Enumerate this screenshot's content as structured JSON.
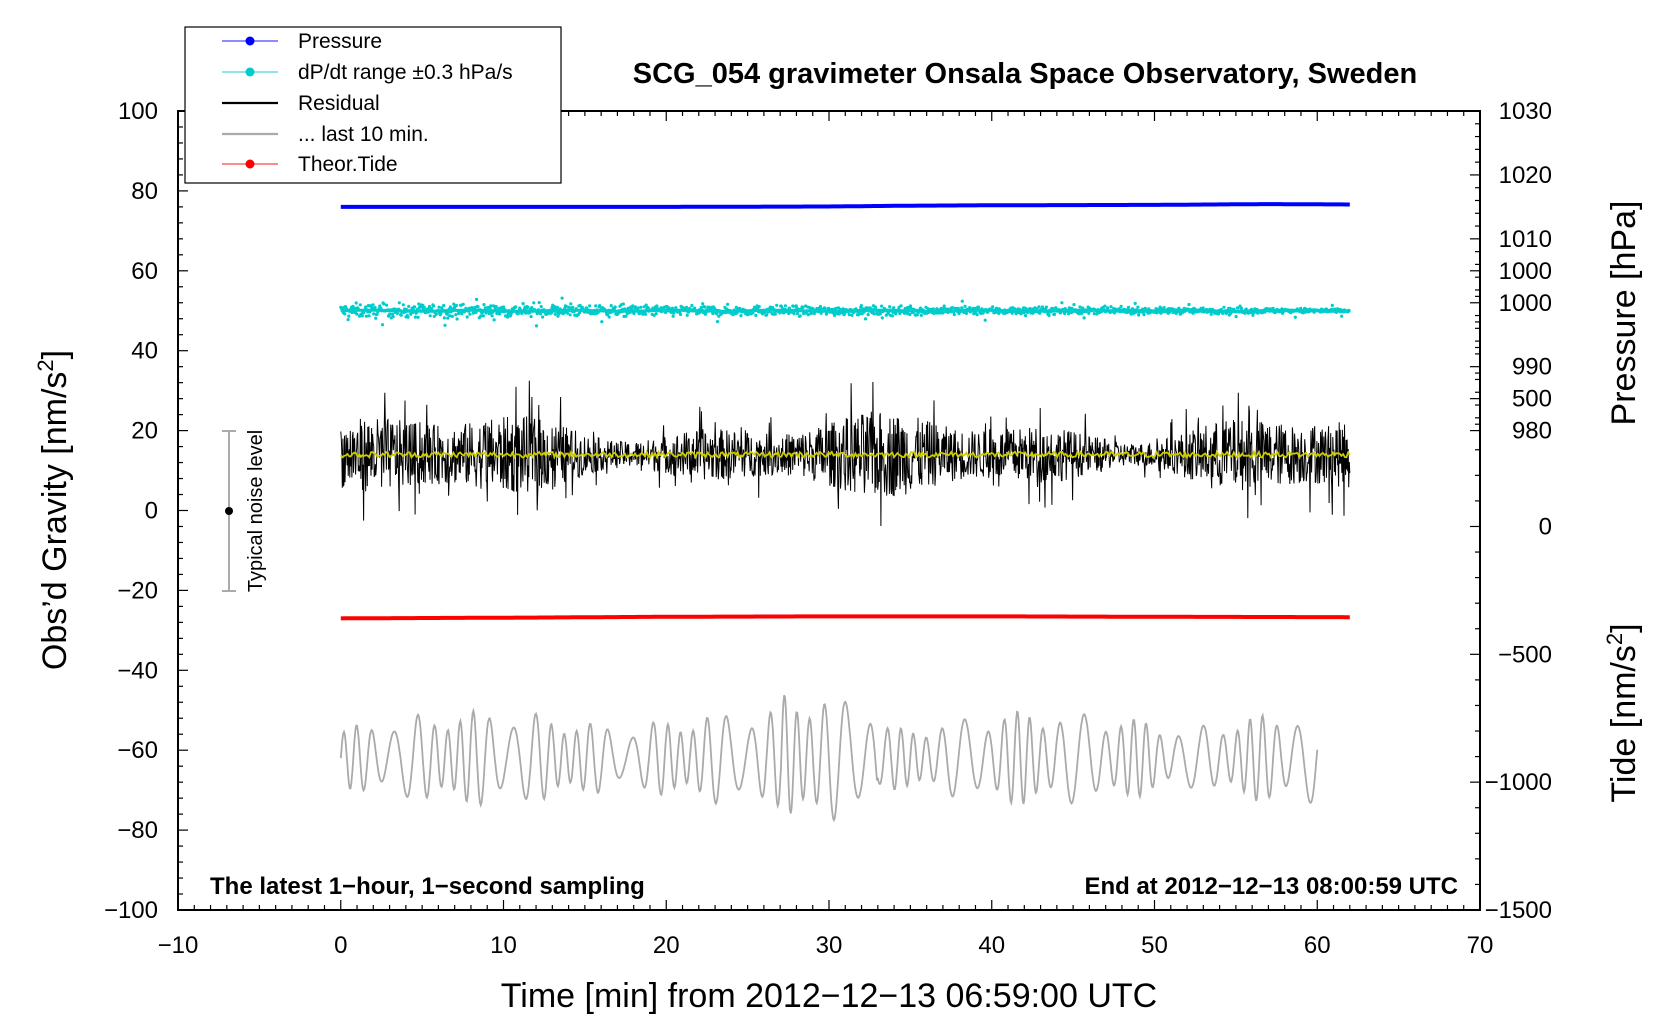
{
  "chart_data": {
    "type": "line",
    "title": "SCG_054 gravimeter Onsala Space Observatory, Sweden",
    "xlabel": "Time [min] from 2012−12−13 06:59:00 UTC",
    "ylabel_left_main": "Obs’d Gravity [nm/s",
    "ylabel_left_sup": "2",
    "ylabel_left_close": "]",
    "ylabel_right_pressure": "Pressure [hPa]",
    "ylabel_right_tide_main": "Tide [nm/s",
    "ylabel_right_tide_sup": "2",
    "ylabel_right_tide_close": "]",
    "xlim": [
      -10,
      70
    ],
    "ylim": [
      -100,
      100
    ],
    "pressure_axis_range": [
      980,
      1030
    ],
    "tide_axis_range": [
      -1500,
      1000
    ],
    "x_ticks": [
      "−10",
      "0",
      "10",
      "20",
      "30",
      "40",
      "50",
      "60",
      "70"
    ],
    "y_ticks_left": [
      "−100",
      "−80",
      "−60",
      "−40",
      "−20",
      "0",
      "20",
      "40",
      "60",
      "80",
      "100"
    ],
    "y_ticks_pressure": [
      "980",
      "990",
      "1000",
      "1010",
      "1020",
      "1030"
    ],
    "y_ticks_tide": [
      "−1500",
      "−1000",
      "−500",
      "0",
      "500",
      "1000"
    ],
    "annotation_left": "The latest 1−hour, 1−second sampling",
    "annotation_right": "End at 2012−12−13 08:00:59 UTC",
    "noise_label": "Typical noise level",
    "noise_bar": {
      "x": -7,
      "center": 0,
      "half_range": 20
    },
    "legend": [
      {
        "label": "Pressure",
        "color": "#0000ff",
        "style": "line-dot"
      },
      {
        "label": "dP/dt range ±0.3 hPa/s",
        "color": "#00cccc",
        "style": "line-dot"
      },
      {
        "label": "Residual",
        "color": "#000000",
        "style": "line"
      },
      {
        "label": "... last 10 min.",
        "color": "#aaaaaa",
        "style": "line"
      },
      {
        "label": "Theor.Tide",
        "color": "#ff0000",
        "style": "line-dot"
      }
    ],
    "series": [
      {
        "name": "Pressure",
        "color": "#0000ff",
        "axis": "left_equivalent",
        "x": [
          0,
          10,
          20,
          30,
          35,
          40,
          50,
          57,
          62
        ],
        "y": [
          76.0,
          76.0,
          76.0,
          76.1,
          76.3,
          76.4,
          76.5,
          76.7,
          76.6
        ]
      },
      {
        "name": "dP/dt range ±0.3 hPa/s",
        "color": "#00cccc",
        "center": 50,
        "spread_start": 3.0,
        "spread_end": 1.0,
        "xrange": [
          0,
          62
        ]
      },
      {
        "name": "Residual",
        "color": "#000000",
        "center": 14,
        "spread": 8,
        "xrange": [
          0,
          62
        ]
      },
      {
        "name": "Residual smoothed",
        "color": "#cccc00",
        "center": 14,
        "xrange": [
          0,
          62
        ]
      },
      {
        "name": "Theor.Tide",
        "color": "#ff0000",
        "x": [
          0,
          12,
          20,
          30,
          40,
          50,
          62
        ],
        "y": [
          -27.0,
          -26.8,
          -26.6,
          -26.5,
          -26.5,
          -26.6,
          -26.7
        ]
      },
      {
        "name": "... last 10 min.",
        "color": "#aaaaaa",
        "center": -62,
        "amplitude": 10,
        "xrange": [
          0,
          60
        ]
      }
    ],
    "colors": {
      "axis": "#000000",
      "noise_bar": "#aaaaaa"
    }
  }
}
